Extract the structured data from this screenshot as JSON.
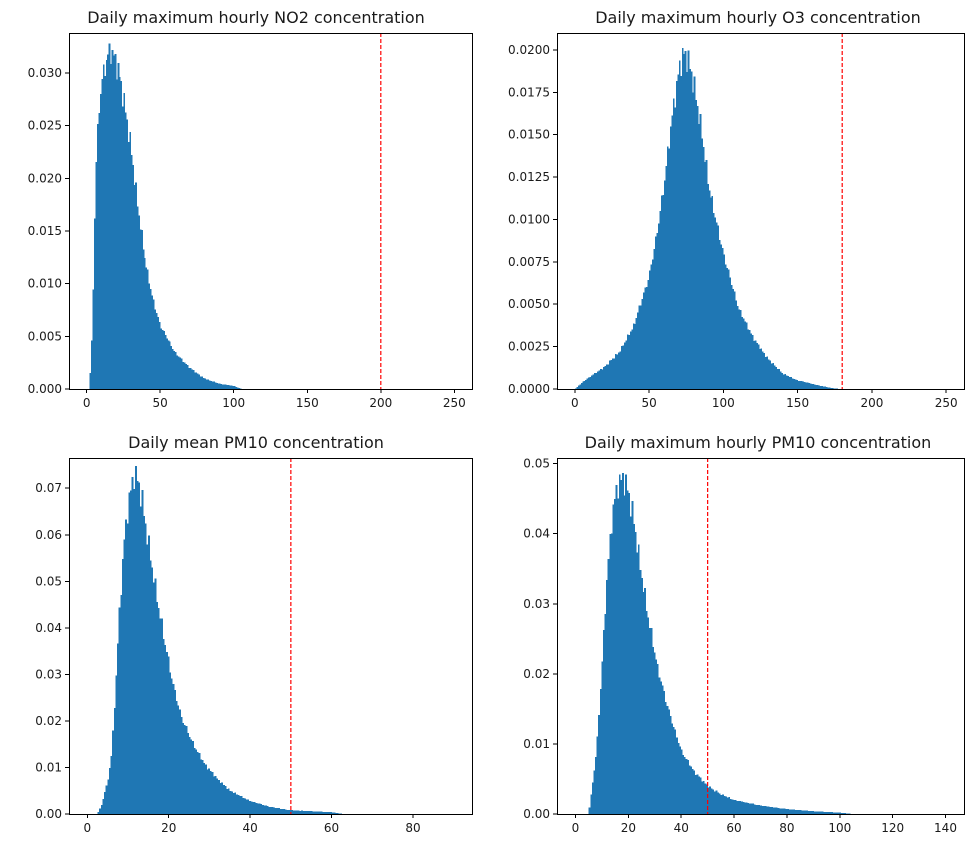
{
  "chart_data": [
    {
      "type": "histogram",
      "title": "Daily maximum hourly NO2 concentration",
      "xlim": [
        -12,
        262
      ],
      "ylim": [
        0,
        0.0338
      ],
      "xticks": [
        0,
        50,
        100,
        150,
        200,
        250
      ],
      "yticks": [
        0.0,
        0.005,
        0.01,
        0.015,
        0.02,
        0.025,
        0.03
      ],
      "ytick_labels": [
        "0.000",
        "0.005",
        "0.010",
        "0.015",
        "0.020",
        "0.025",
        "0.030"
      ],
      "threshold": 200,
      "bin_width": 1,
      "density_points": [
        [
          2,
          0
        ],
        [
          4,
          0.006
        ],
        [
          6,
          0.02
        ],
        [
          8,
          0.026
        ],
        [
          10,
          0.029
        ],
        [
          13,
          0.031
        ],
        [
          16,
          0.0322
        ],
        [
          19,
          0.0314
        ],
        [
          22,
          0.03
        ],
        [
          26,
          0.0268
        ],
        [
          30,
          0.023
        ],
        [
          35,
          0.017
        ],
        [
          40,
          0.012
        ],
        [
          45,
          0.0085
        ],
        [
          50,
          0.006
        ],
        [
          60,
          0.0035
        ],
        [
          70,
          0.002
        ],
        [
          80,
          0.001
        ],
        [
          90,
          0.0005
        ],
        [
          100,
          0.0003
        ],
        [
          105,
          0
        ],
        [
          250,
          0
        ]
      ]
    },
    {
      "type": "histogram",
      "title": "Daily maximum hourly O3 concentration",
      "xlim": [
        -12,
        262
      ],
      "ylim": [
        0,
        0.021
      ],
      "xticks": [
        0,
        50,
        100,
        150,
        200,
        250
      ],
      "yticks": [
        0.0,
        0.0025,
        0.005,
        0.0075,
        0.01,
        0.0125,
        0.015,
        0.0175,
        0.02
      ],
      "ytick_labels": [
        "0.0000",
        "0.0025",
        "0.0050",
        "0.0075",
        "0.0100",
        "0.0125",
        "0.0150",
        "0.0175",
        "0.0200"
      ],
      "threshold": 180,
      "bin_width": 1,
      "density_points": [
        [
          0,
          0
        ],
        [
          5,
          0.0004
        ],
        [
          10,
          0.0007
        ],
        [
          20,
          0.0013
        ],
        [
          30,
          0.0022
        ],
        [
          40,
          0.0038
        ],
        [
          50,
          0.0066
        ],
        [
          55,
          0.009
        ],
        [
          60,
          0.012
        ],
        [
          65,
          0.0158
        ],
        [
          70,
          0.0188
        ],
        [
          73,
          0.0198
        ],
        [
          76,
          0.0195
        ],
        [
          80,
          0.018
        ],
        [
          85,
          0.0153
        ],
        [
          90,
          0.012
        ],
        [
          100,
          0.008
        ],
        [
          110,
          0.0048
        ],
        [
          120,
          0.003
        ],
        [
          130,
          0.0018
        ],
        [
          140,
          0.0009
        ],
        [
          150,
          0.0005
        ],
        [
          160,
          0.0003
        ],
        [
          170,
          0.0001
        ],
        [
          178,
          0
        ],
        [
          250,
          0
        ]
      ]
    },
    {
      "type": "histogram",
      "title": "Daily mean PM10 concentration",
      "xlim": [
        -4.5,
        94.5
      ],
      "ylim": [
        0,
        0.0765
      ],
      "xticks": [
        0,
        20,
        40,
        60,
        80
      ],
      "yticks": [
        0.0,
        0.01,
        0.02,
        0.03,
        0.04,
        0.05,
        0.06,
        0.07
      ],
      "ytick_labels": [
        "0.00",
        "0.01",
        "0.02",
        "0.03",
        "0.04",
        "0.05",
        "0.06",
        "0.07"
      ],
      "threshold": 50,
      "bin_width": 0.4,
      "density_points": [
        [
          2.5,
          0
        ],
        [
          3.5,
          0.002
        ],
        [
          5,
          0.007
        ],
        [
          6,
          0.013
        ],
        [
          7,
          0.028
        ],
        [
          8,
          0.045
        ],
        [
          9,
          0.058
        ],
        [
          10,
          0.066
        ],
        [
          11,
          0.071
        ],
        [
          11.5,
          0.073
        ],
        [
          12.5,
          0.0715
        ],
        [
          13.5,
          0.067
        ],
        [
          15,
          0.058
        ],
        [
          17,
          0.047
        ],
        [
          19,
          0.037
        ],
        [
          21,
          0.028
        ],
        [
          23,
          0.021
        ],
        [
          26,
          0.015
        ],
        [
          29,
          0.0105
        ],
        [
          32,
          0.0075
        ],
        [
          35,
          0.005
        ],
        [
          40,
          0.0028
        ],
        [
          45,
          0.0015
        ],
        [
          50,
          0.0008
        ],
        [
          55,
          0.0006
        ],
        [
          60,
          0.0004
        ],
        [
          63,
          0
        ],
        [
          90,
          0
        ]
      ]
    },
    {
      "type": "histogram",
      "title": "Daily maximum hourly PM10 concentration",
      "xlim": [
        -7,
        147
      ],
      "ylim": [
        0,
        0.0508
      ],
      "xticks": [
        0,
        20,
        40,
        60,
        80,
        100,
        120,
        140
      ],
      "yticks": [
        0.0,
        0.01,
        0.02,
        0.03,
        0.04,
        0.05
      ],
      "ytick_labels": [
        "0.00",
        "0.01",
        "0.02",
        "0.03",
        "0.04",
        "0.05"
      ],
      "threshold": 50,
      "bin_width": 0.6,
      "density_points": [
        [
          5,
          0
        ],
        [
          6,
          0.003
        ],
        [
          8,
          0.009
        ],
        [
          10,
          0.021
        ],
        [
          12,
          0.034
        ],
        [
          14,
          0.043
        ],
        [
          16,
          0.047
        ],
        [
          18,
          0.048
        ],
        [
          20,
          0.046
        ],
        [
          22,
          0.042
        ],
        [
          25,
          0.034
        ],
        [
          28,
          0.027
        ],
        [
          31,
          0.021
        ],
        [
          35,
          0.015
        ],
        [
          40,
          0.009
        ],
        [
          45,
          0.006
        ],
        [
          50,
          0.004
        ],
        [
          55,
          0.0028
        ],
        [
          60,
          0.002
        ],
        [
          70,
          0.0012
        ],
        [
          80,
          0.0007
        ],
        [
          90,
          0.0004
        ],
        [
          100,
          0.0002
        ],
        [
          105,
          0
        ],
        [
          145,
          0
        ]
      ]
    }
  ]
}
